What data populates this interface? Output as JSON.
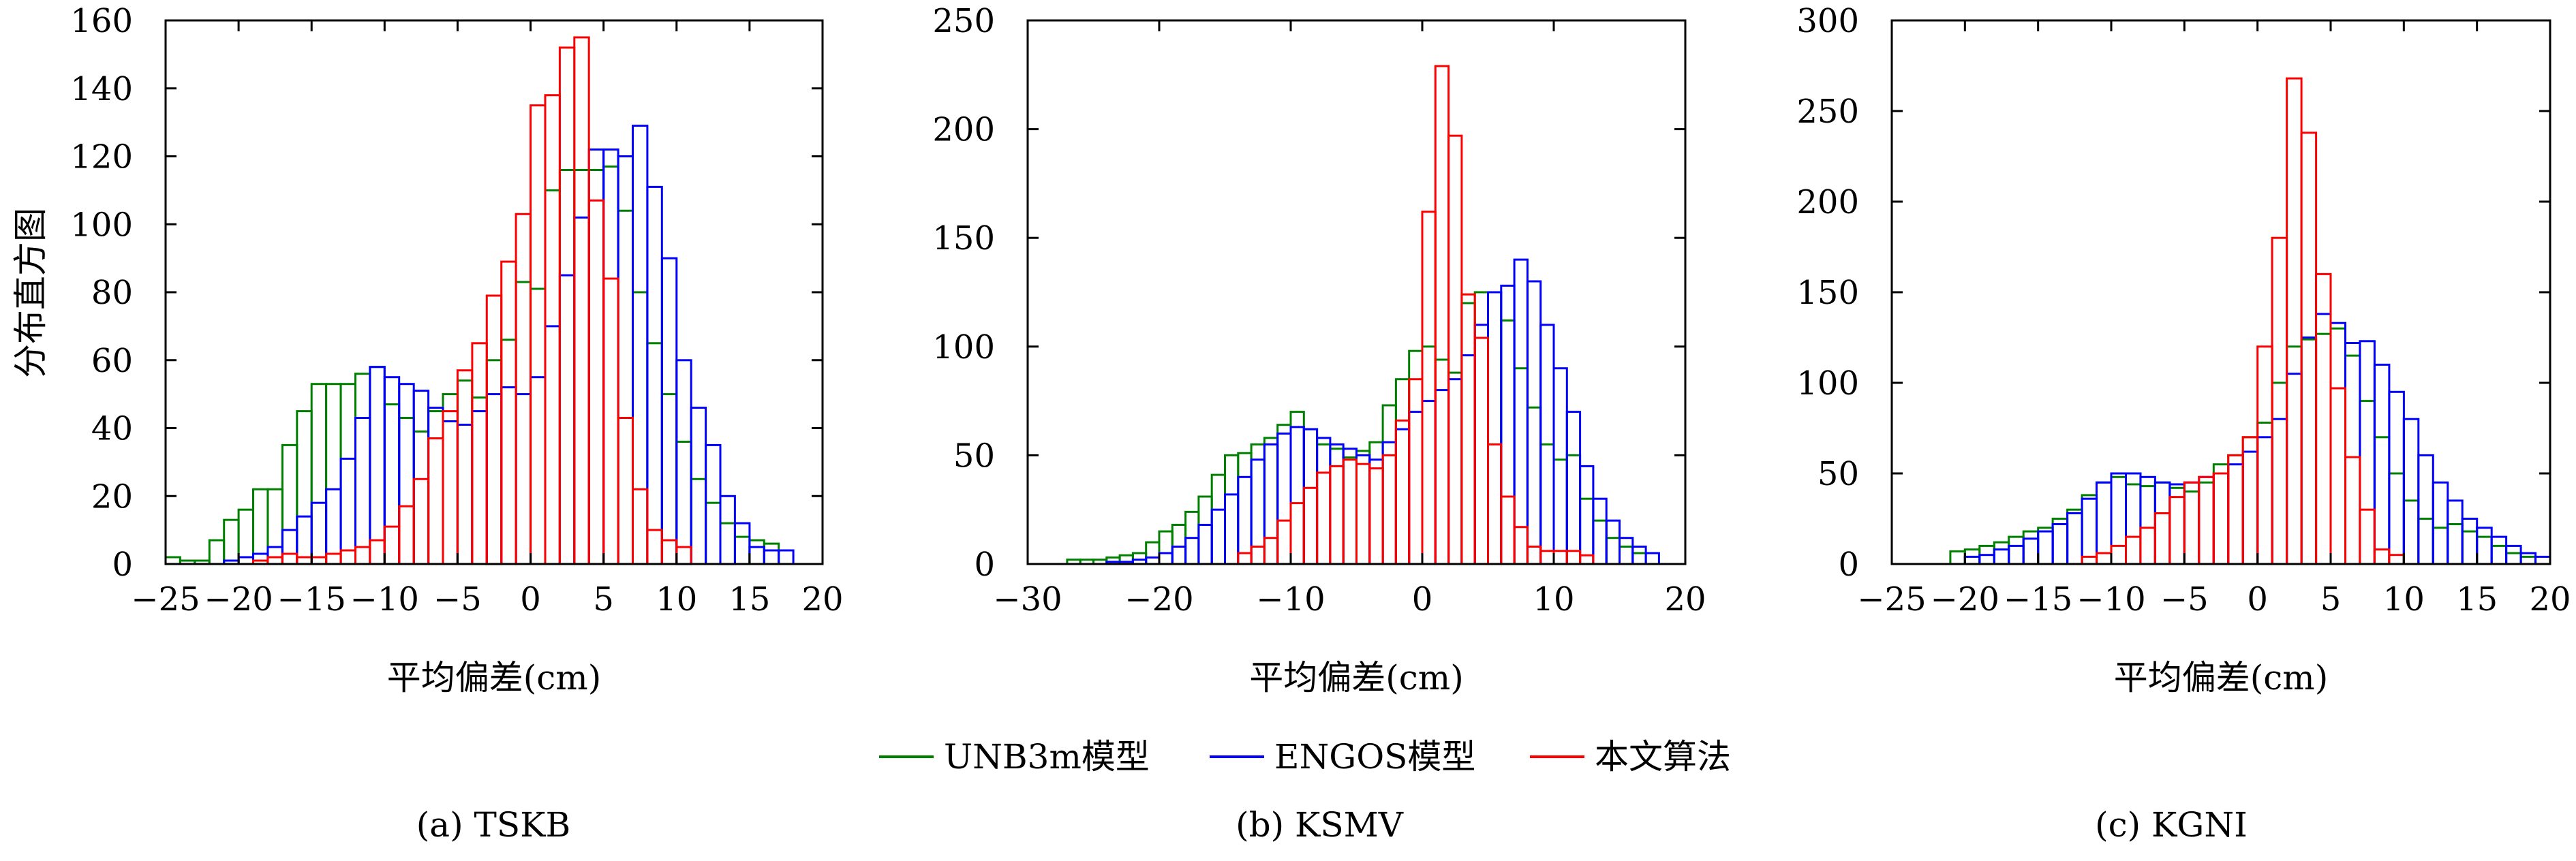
{
  "ylabel": "分布直方图",
  "legend": {
    "placement": "bottom-center",
    "items": [
      {
        "label": "UNB3m模型",
        "color": "#008000"
      },
      {
        "label": "ENGOS模型",
        "color": "#0000ff"
      },
      {
        "label": "本文算法",
        "color": "#ff0000"
      }
    ]
  },
  "captions": [
    "(a) TSKB",
    "(b) KSMV",
    "(c) KGNI"
  ],
  "chart_data": [
    {
      "type": "bar",
      "title": "(a) TSKB",
      "xlabel": "平均偏差(cm)",
      "ylabel": "分布直方图",
      "xlim": [
        -25,
        20
      ],
      "ylim": [
        0,
        160
      ],
      "xticks": [
        -25,
        -20,
        -15,
        -10,
        -5,
        0,
        5,
        10,
        15,
        20
      ],
      "yticks": [
        0,
        20,
        40,
        60,
        80,
        100,
        120,
        140,
        160
      ],
      "grid": false,
      "bin_width": 1,
      "series": [
        {
          "name": "UNB3m模型",
          "color": "#008000",
          "x": [
            -24.5,
            -23.5,
            -22.5,
            -21.5,
            -20.5,
            -19.5,
            -18.5,
            -17.5,
            -16.5,
            -15.5,
            -14.5,
            -13.5,
            -12.5,
            -11.5,
            -10.5,
            -9.5,
            -8.5,
            -7.5,
            -6.5,
            -5.5,
            -4.5,
            -3.5,
            -2.5,
            -1.5,
            -0.5,
            0.5,
            1.5,
            2.5,
            3.5,
            4.5,
            5.5,
            6.5,
            7.5,
            8.5,
            9.5,
            10.5,
            11.5,
            12.5,
            13.5,
            14.5,
            15.5,
            16.5
          ],
          "values": [
            2,
            1,
            1,
            7,
            13,
            16,
            22,
            22,
            35,
            45,
            53,
            53,
            53,
            56,
            58,
            47,
            43,
            39,
            45,
            50,
            54,
            49,
            60,
            66,
            83,
            81,
            110,
            116,
            116,
            116,
            117,
            104,
            80,
            65,
            50,
            36,
            25,
            18,
            12,
            8,
            7,
            6
          ]
        },
        {
          "name": "ENGOS模型",
          "color": "#0000ff",
          "x": [
            -20.5,
            -19.5,
            -18.5,
            -17.5,
            -16.5,
            -15.5,
            -14.5,
            -13.5,
            -12.5,
            -11.5,
            -10.5,
            -9.5,
            -8.5,
            -7.5,
            -6.5,
            -5.5,
            -4.5,
            -3.5,
            -2.5,
            -1.5,
            -0.5,
            0.5,
            1.5,
            2.5,
            3.5,
            4.5,
            5.5,
            6.5,
            7.5,
            8.5,
            9.5,
            10.5,
            11.5,
            12.5,
            13.5,
            14.5,
            15.5,
            16.5,
            17.5
          ],
          "values": [
            1,
            2,
            3,
            5,
            10,
            14,
            18,
            22,
            31,
            43,
            58,
            55,
            53,
            51,
            46,
            42,
            41,
            45,
            50,
            52,
            50,
            55,
            70,
            85,
            102,
            122,
            122,
            120,
            129,
            111,
            90,
            60,
            46,
            35,
            20,
            12,
            5,
            4,
            4
          ]
        },
        {
          "name": "本文算法",
          "color": "#ff0000",
          "x": [
            -18.5,
            -17.5,
            -16.5,
            -15.5,
            -14.5,
            -13.5,
            -12.5,
            -11.5,
            -10.5,
            -9.5,
            -8.5,
            -7.5,
            -6.5,
            -5.5,
            -4.5,
            -3.5,
            -2.5,
            -1.5,
            -0.5,
            0.5,
            1.5,
            2.5,
            3.5,
            4.5,
            5.5,
            6.5,
            7.5,
            8.5,
            9.5,
            10.5
          ],
          "values": [
            1,
            2,
            3,
            2,
            2,
            3,
            4,
            5,
            7,
            11,
            17,
            25,
            37,
            45,
            57,
            65,
            79,
            89,
            103,
            135,
            138,
            152,
            155,
            107,
            84,
            43,
            22,
            10,
            7,
            5
          ]
        }
      ]
    },
    {
      "type": "bar",
      "title": "(b) KSMV",
      "xlabel": "平均偏差(cm)",
      "ylabel": "",
      "xlim": [
        -30,
        20
      ],
      "ylim": [
        0,
        250
      ],
      "xticks": [
        -30,
        -20,
        -10,
        0,
        10,
        20
      ],
      "yticks": [
        0,
        50,
        100,
        150,
        200,
        250
      ],
      "grid": false,
      "bin_width": 1,
      "series": [
        {
          "name": "UNB3m模型",
          "color": "#008000",
          "x": [
            -26.5,
            -25.5,
            -24.5,
            -23.5,
            -22.5,
            -21.5,
            -20.5,
            -19.5,
            -18.5,
            -17.5,
            -16.5,
            -15.5,
            -14.5,
            -13.5,
            -12.5,
            -11.5,
            -10.5,
            -9.5,
            -8.5,
            -7.5,
            -6.5,
            -5.5,
            -4.5,
            -3.5,
            -2.5,
            -1.5,
            -0.5,
            0.5,
            1.5,
            2.5,
            3.5,
            4.5,
            5.5,
            6.5,
            7.5,
            8.5,
            9.5,
            10.5,
            11.5,
            12.5,
            13.5,
            14.5,
            15.5,
            16.5
          ],
          "values": [
            2,
            2,
            2,
            3,
            4,
            5,
            10,
            15,
            18,
            24,
            31,
            41,
            50,
            51,
            55,
            58,
            64,
            70,
            62,
            55,
            53,
            49,
            52,
            56,
            73,
            85,
            98,
            100,
            94,
            88,
            120,
            125,
            125,
            112,
            90,
            72,
            55,
            48,
            50,
            30,
            20,
            12,
            8,
            5
          ]
        },
        {
          "name": "ENGOS模型",
          "color": "#0000ff",
          "x": [
            -23.5,
            -22.5,
            -21.5,
            -20.5,
            -19.5,
            -18.5,
            -17.5,
            -16.5,
            -15.5,
            -14.5,
            -13.5,
            -12.5,
            -11.5,
            -10.5,
            -9.5,
            -8.5,
            -7.5,
            -6.5,
            -5.5,
            -4.5,
            -3.5,
            -2.5,
            -1.5,
            -0.5,
            0.5,
            1.5,
            2.5,
            3.5,
            4.5,
            5.5,
            6.5,
            7.5,
            8.5,
            9.5,
            10.5,
            11.5,
            12.5,
            13.5,
            14.5,
            15.5,
            16.5,
            17.5
          ],
          "values": [
            1,
            1,
            2,
            3,
            5,
            8,
            12,
            18,
            25,
            32,
            40,
            48,
            55,
            60,
            63,
            62,
            58,
            55,
            53,
            50,
            48,
            56,
            62,
            70,
            75,
            80,
            85,
            96,
            110,
            125,
            128,
            140,
            130,
            110,
            90,
            70,
            45,
            30,
            20,
            12,
            8,
            5
          ]
        },
        {
          "name": "本文算法",
          "color": "#ff0000",
          "x": [
            -13.5,
            -12.5,
            -11.5,
            -10.5,
            -9.5,
            -8.5,
            -7.5,
            -6.5,
            -5.5,
            -4.5,
            -3.5,
            -2.5,
            -1.5,
            -0.5,
            0.5,
            1.5,
            2.5,
            3.5,
            4.5,
            5.5,
            6.5,
            7.5,
            8.5,
            9.5,
            10.5,
            11.5,
            12.5
          ],
          "values": [
            5,
            8,
            12,
            20,
            28,
            35,
            42,
            45,
            48,
            46,
            44,
            50,
            66,
            85,
            162,
            229,
            197,
            124,
            104,
            55,
            31,
            17,
            8,
            6,
            6,
            6,
            4
          ]
        }
      ]
    },
    {
      "type": "bar",
      "title": "(c) KGNI",
      "xlabel": "平均偏差(cm)",
      "ylabel": "",
      "xlim": [
        -25,
        20
      ],
      "ylim": [
        0,
        300
      ],
      "xticks": [
        -25,
        -20,
        -15,
        -10,
        -5,
        0,
        5,
        10,
        15,
        20
      ],
      "yticks": [
        0,
        50,
        100,
        150,
        200,
        250,
        300
      ],
      "grid": false,
      "bin_width": 1,
      "series": [
        {
          "name": "UNB3m模型",
          "color": "#008000",
          "x": [
            -20.5,
            -19.5,
            -18.5,
            -17.5,
            -16.5,
            -15.5,
            -14.5,
            -13.5,
            -12.5,
            -11.5,
            -10.5,
            -9.5,
            -8.5,
            -7.5,
            -6.5,
            -5.5,
            -4.5,
            -3.5,
            -2.5,
            -1.5,
            -0.5,
            0.5,
            1.5,
            2.5,
            3.5,
            4.5,
            5.5,
            6.5,
            7.5,
            8.5,
            9.5,
            10.5,
            11.5,
            12.5,
            13.5,
            14.5,
            15.5,
            16.5,
            17.5,
            18.5
          ],
          "values": [
            7,
            8,
            10,
            12,
            15,
            18,
            20,
            25,
            30,
            38,
            45,
            48,
            44,
            43,
            45,
            42,
            40,
            45,
            55,
            60,
            70,
            78,
            100,
            120,
            124,
            127,
            130,
            115,
            90,
            70,
            50,
            35,
            25,
            20,
            22,
            18,
            15,
            10,
            6,
            4
          ]
        },
        {
          "name": "ENGOS模型",
          "color": "#0000ff",
          "x": [
            -19.5,
            -18.5,
            -17.5,
            -16.5,
            -15.5,
            -14.5,
            -13.5,
            -12.5,
            -11.5,
            -10.5,
            -9.5,
            -8.5,
            -7.5,
            -6.5,
            -5.5,
            -4.5,
            -3.5,
            -2.5,
            -1.5,
            -0.5,
            0.5,
            1.5,
            2.5,
            3.5,
            4.5,
            5.5,
            6.5,
            7.5,
            8.5,
            9.5,
            10.5,
            11.5,
            12.5,
            13.5,
            14.5,
            15.5,
            16.5,
            17.5,
            18.5,
            19.5
          ],
          "values": [
            4,
            5,
            8,
            10,
            14,
            18,
            22,
            28,
            36,
            45,
            50,
            50,
            48,
            45,
            44,
            45,
            48,
            50,
            55,
            62,
            70,
            80,
            105,
            125,
            138,
            133,
            122,
            123,
            110,
            95,
            80,
            60,
            45,
            35,
            25,
            20,
            15,
            10,
            6,
            4
          ]
        },
        {
          "name": "本文算法",
          "color": "#ff0000",
          "x": [
            -11.5,
            -10.5,
            -9.5,
            -8.5,
            -7.5,
            -6.5,
            -5.5,
            -4.5,
            -3.5,
            -2.5,
            -1.5,
            -0.5,
            0.5,
            1.5,
            2.5,
            3.5,
            4.5,
            5.5,
            6.5,
            7.5,
            8.5,
            9.5
          ],
          "values": [
            4,
            6,
            10,
            15,
            20,
            28,
            37,
            45,
            48,
            50,
            60,
            70,
            120,
            180,
            268,
            238,
            160,
            97,
            59,
            30,
            8,
            5
          ]
        }
      ]
    }
  ]
}
